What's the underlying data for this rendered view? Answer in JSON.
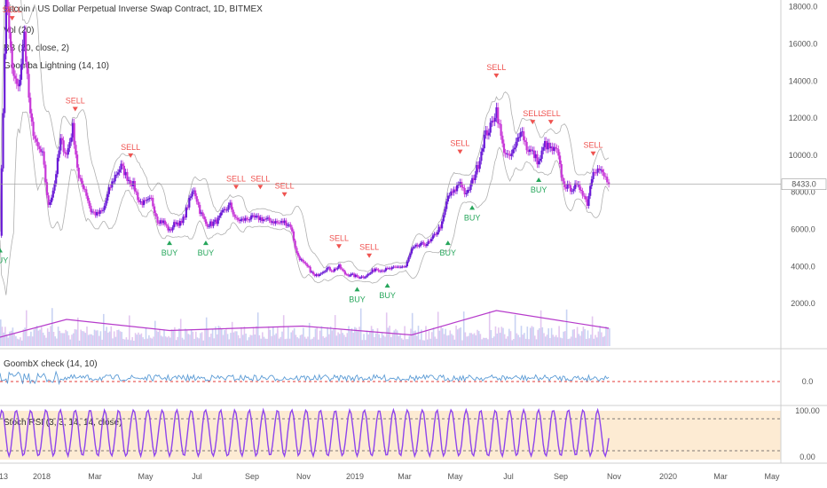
{
  "header": {
    "title": "Bitcoin / US Dollar Perpetual Inverse Swap Contract, 1D, BITMEX",
    "indicators": [
      "Vol (20)",
      "BB (20, close, 2)",
      "Goomba Lightning (14, 10)"
    ]
  },
  "panes": {
    "oscillator_label": "GoombX check (14, 10)",
    "stoch_label": "Stoch RSI (3, 3, 14, 14, close)"
  },
  "price_axis": {
    "ticks": [
      "2000.0",
      "4000.0",
      "6000.0",
      "8000.0",
      "10000.0",
      "12000.0",
      "14000.0",
      "16000.0",
      "18000.0"
    ],
    "last_price": "8433.0"
  },
  "osc_axis": {
    "ticks": [
      "0.0"
    ]
  },
  "stoch_axis": {
    "ticks": [
      "100.00",
      "0.00"
    ]
  },
  "time_axis": {
    "labels": [
      "13",
      "2018",
      "Mar",
      "May",
      "Jul",
      "Sep",
      "Nov",
      "2019",
      "Mar",
      "May",
      "Jul",
      "Sep",
      "Nov",
      "2020",
      "Mar",
      "May"
    ]
  },
  "colors": {
    "up_candle": "#6a1bd6",
    "down_candle": "#c738d8",
    "sell": "#ef5350",
    "buy": "#26a65b",
    "osc_line": "#5b9bd5",
    "osc_zero": "#e53935",
    "stoch_line": "#8e44ec",
    "stoch_band": "#fdebd3",
    "bb": "#b0b0b0",
    "volume_ma": "#b63bcb"
  },
  "chart_data": {
    "type": "candlestick",
    "title": "Bitcoin / US Dollar Perpetual Inverse Swap Contract, 1D, BITMEX",
    "ylim": [
      0,
      19000
    ],
    "y_scale": "linear",
    "x_range": [
      "2017-12-10",
      "2020-05-31"
    ],
    "close_series": [
      [
        "2017-12-10",
        5800
      ],
      [
        "2017-12-17",
        19000
      ],
      [
        "2017-12-24",
        14500
      ],
      [
        "2017-12-31",
        13500
      ],
      [
        "2018-01-07",
        16500
      ],
      [
        "2018-01-14",
        12000
      ],
      [
        "2018-01-21",
        10500
      ],
      [
        "2018-01-28",
        10000
      ],
      [
        "2018-02-04",
        7200
      ],
      [
        "2018-02-11",
        8500
      ],
      [
        "2018-02-18",
        10800
      ],
      [
        "2018-02-25",
        10000
      ],
      [
        "2018-03-04",
        11500
      ],
      [
        "2018-03-11",
        8700
      ],
      [
        "2018-03-18",
        8200
      ],
      [
        "2018-03-25",
        7000
      ],
      [
        "2018-04-01",
        6800
      ],
      [
        "2018-04-08",
        7000
      ],
      [
        "2018-04-15",
        8100
      ],
      [
        "2018-04-22",
        8900
      ],
      [
        "2018-04-29",
        9400
      ],
      [
        "2018-05-06",
        8800
      ],
      [
        "2018-05-13",
        8400
      ],
      [
        "2018-05-20",
        7500
      ],
      [
        "2018-05-27",
        7400
      ],
      [
        "2018-06-03",
        7600
      ],
      [
        "2018-06-10",
        6500
      ],
      [
        "2018-06-17",
        6400
      ],
      [
        "2018-06-24",
        5900
      ],
      [
        "2018-07-01",
        6400
      ],
      [
        "2018-07-08",
        6300
      ],
      [
        "2018-07-15",
        7300
      ],
      [
        "2018-07-22",
        8200
      ],
      [
        "2018-07-29",
        7000
      ],
      [
        "2018-08-05",
        6300
      ],
      [
        "2018-08-12",
        6300
      ],
      [
        "2018-08-19",
        6500
      ],
      [
        "2018-08-26",
        7000
      ],
      [
        "2018-09-02",
        7300
      ],
      [
        "2018-09-09",
        6500
      ],
      [
        "2018-09-16",
        6500
      ],
      [
        "2018-09-23",
        6600
      ],
      [
        "2018-09-30",
        6600
      ],
      [
        "2018-10-07",
        6600
      ],
      [
        "2018-10-14",
        6500
      ],
      [
        "2018-10-21",
        6450
      ],
      [
        "2018-10-28",
        6350
      ],
      [
        "2018-11-04",
        6400
      ],
      [
        "2018-11-11",
        6200
      ],
      [
        "2018-11-18",
        4700
      ],
      [
        "2018-11-25",
        4200
      ],
      [
        "2018-12-02",
        3900
      ],
      [
        "2018-12-09",
        3450
      ],
      [
        "2018-12-16",
        3700
      ],
      [
        "2018-12-23",
        3900
      ],
      [
        "2018-12-30",
        3800
      ],
      [
        "2019-01-06",
        4000
      ],
      [
        "2019-01-13",
        3600
      ],
      [
        "2019-01-20",
        3550
      ],
      [
        "2019-01-27",
        3450
      ],
      [
        "2019-02-03",
        3450
      ],
      [
        "2019-02-10",
        3600
      ],
      [
        "2019-02-17",
        3900
      ],
      [
        "2019-02-24",
        3800
      ],
      [
        "2019-03-03",
        3850
      ],
      [
        "2019-03-10",
        3900
      ],
      [
        "2019-03-17",
        4000
      ],
      [
        "2019-03-24",
        4000
      ],
      [
        "2019-03-31",
        4900
      ],
      [
        "2019-04-07",
        5100
      ],
      [
        "2019-04-14",
        5200
      ],
      [
        "2019-04-21",
        5300
      ],
      [
        "2019-04-28",
        5800
      ],
      [
        "2019-05-05",
        6300
      ],
      [
        "2019-05-12",
        7800
      ],
      [
        "2019-05-19",
        8000
      ],
      [
        "2019-05-26",
        8600
      ],
      [
        "2019-06-02",
        7800
      ],
      [
        "2019-06-09",
        8600
      ],
      [
        "2019-06-16",
        9500
      ],
      [
        "2019-06-23",
        11000
      ],
      [
        "2019-06-30",
        11500
      ],
      [
        "2019-07-07",
        12500
      ],
      [
        "2019-07-14",
        10500
      ],
      [
        "2019-07-21",
        9800
      ],
      [
        "2019-07-28",
        10300
      ],
      [
        "2019-08-04",
        11500
      ],
      [
        "2019-08-11",
        10400
      ],
      [
        "2019-08-18",
        10100
      ],
      [
        "2019-08-25",
        9600
      ],
      [
        "2019-09-01",
        10600
      ],
      [
        "2019-09-08",
        10300
      ],
      [
        "2019-09-15",
        10200
      ],
      [
        "2019-09-22",
        8500
      ],
      [
        "2019-09-29",
        8200
      ],
      [
        "2019-10-06",
        8300
      ],
      [
        "2019-10-13",
        8200
      ],
      [
        "2019-10-20",
        7400
      ],
      [
        "2019-10-27",
        9300
      ],
      [
        "2019-11-03",
        9200
      ],
      [
        "2019-11-10",
        8750
      ],
      [
        "2019-11-14",
        8433
      ]
    ],
    "signals": [
      {
        "label": "SELL",
        "x": "2017-12-24",
        "y": 17500
      },
      {
        "label": "BUY",
        "x": "2017-12-10",
        "y": 5000
      },
      {
        "label": "SELL",
        "x": "2018-03-07",
        "y": 12600
      },
      {
        "label": "SELL",
        "x": "2018-05-10",
        "y": 10100
      },
      {
        "label": "BUY",
        "x": "2018-06-24",
        "y": 5400
      },
      {
        "label": "BUY",
        "x": "2018-08-05",
        "y": 5400
      },
      {
        "label": "SELL",
        "x": "2018-09-09",
        "y": 8400
      },
      {
        "label": "SELL",
        "x": "2018-10-07",
        "y": 8400
      },
      {
        "label": "SELL",
        "x": "2018-11-04",
        "y": 8000
      },
      {
        "label": "SELL",
        "x": "2019-01-06",
        "y": 5200
      },
      {
        "label": "SELL",
        "x": "2019-02-10",
        "y": 4700
      },
      {
        "label": "BUY",
        "x": "2019-01-27",
        "y": 2900
      },
      {
        "label": "BUY",
        "x": "2019-03-03",
        "y": 3100
      },
      {
        "label": "BUY",
        "x": "2019-05-12",
        "y": 5400
      },
      {
        "label": "SELL",
        "x": "2019-05-26",
        "y": 10300
      },
      {
        "label": "BUY",
        "x": "2019-06-09",
        "y": 7300
      },
      {
        "label": "SELL",
        "x": "2019-07-07",
        "y": 14400
      },
      {
        "label": "BUY",
        "x": "2019-08-25",
        "y": 8800
      },
      {
        "label": "SELL",
        "x": "2019-08-18",
        "y": 11900
      },
      {
        "label": "SELL",
        "x": "2019-09-08",
        "y": 11900
      },
      {
        "label": "SELL",
        "x": "2019-10-27",
        "y": 10200
      }
    ],
    "volume_ma_peaks": [
      [
        "2017-12-10",
        400
      ],
      [
        "2018-02-25",
        1200
      ],
      [
        "2018-06-24",
        700
      ],
      [
        "2018-11-25",
        900
      ],
      [
        "2019-03-31",
        500
      ],
      [
        "2019-07-07",
        1600
      ],
      [
        "2019-11-14",
        800
      ]
    ],
    "stoch_rsi_levels": [
      0,
      20,
      80,
      100
    ]
  }
}
